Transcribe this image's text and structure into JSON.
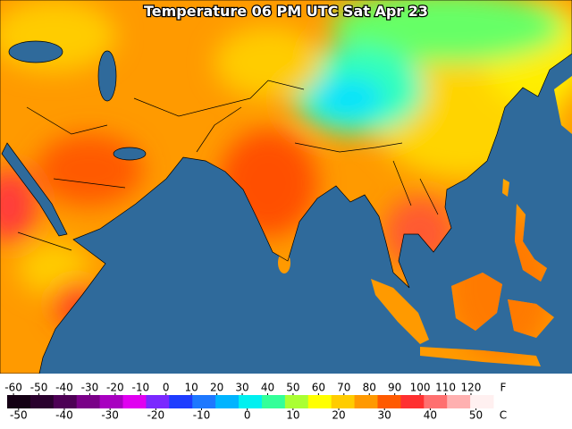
{
  "title": "Temperature 06 PM UTC Sat Apr 23",
  "colorbar": {
    "f_label": "F",
    "c_label": "C",
    "f_lim": [
      -62.5,
      128.8
    ],
    "c_lim": [
      -52.5,
      53.8
    ],
    "f_ticks": [
      -60,
      -50,
      -40,
      -30,
      -20,
      -10,
      0,
      10,
      20,
      30,
      40,
      50,
      60,
      70,
      80,
      90,
      100,
      110,
      120
    ],
    "c_ticks": [
      -50,
      -40,
      -30,
      -20,
      -10,
      0,
      10,
      20,
      30,
      40,
      50
    ],
    "colors": [
      "#140014",
      "#2a002e",
      "#4d0055",
      "#7a0088",
      "#a800c0",
      "#e000f0",
      "#7a28ff",
      "#1e3cff",
      "#1e78ff",
      "#00b4ff",
      "#00f0f0",
      "#33ff99",
      "#aaff33",
      "#ffff00",
      "#ffcc00",
      "#ff9900",
      "#ff5a00",
      "#ff3030",
      "#ff7070",
      "#ffb0b0",
      "#fff0f0"
    ]
  }
}
